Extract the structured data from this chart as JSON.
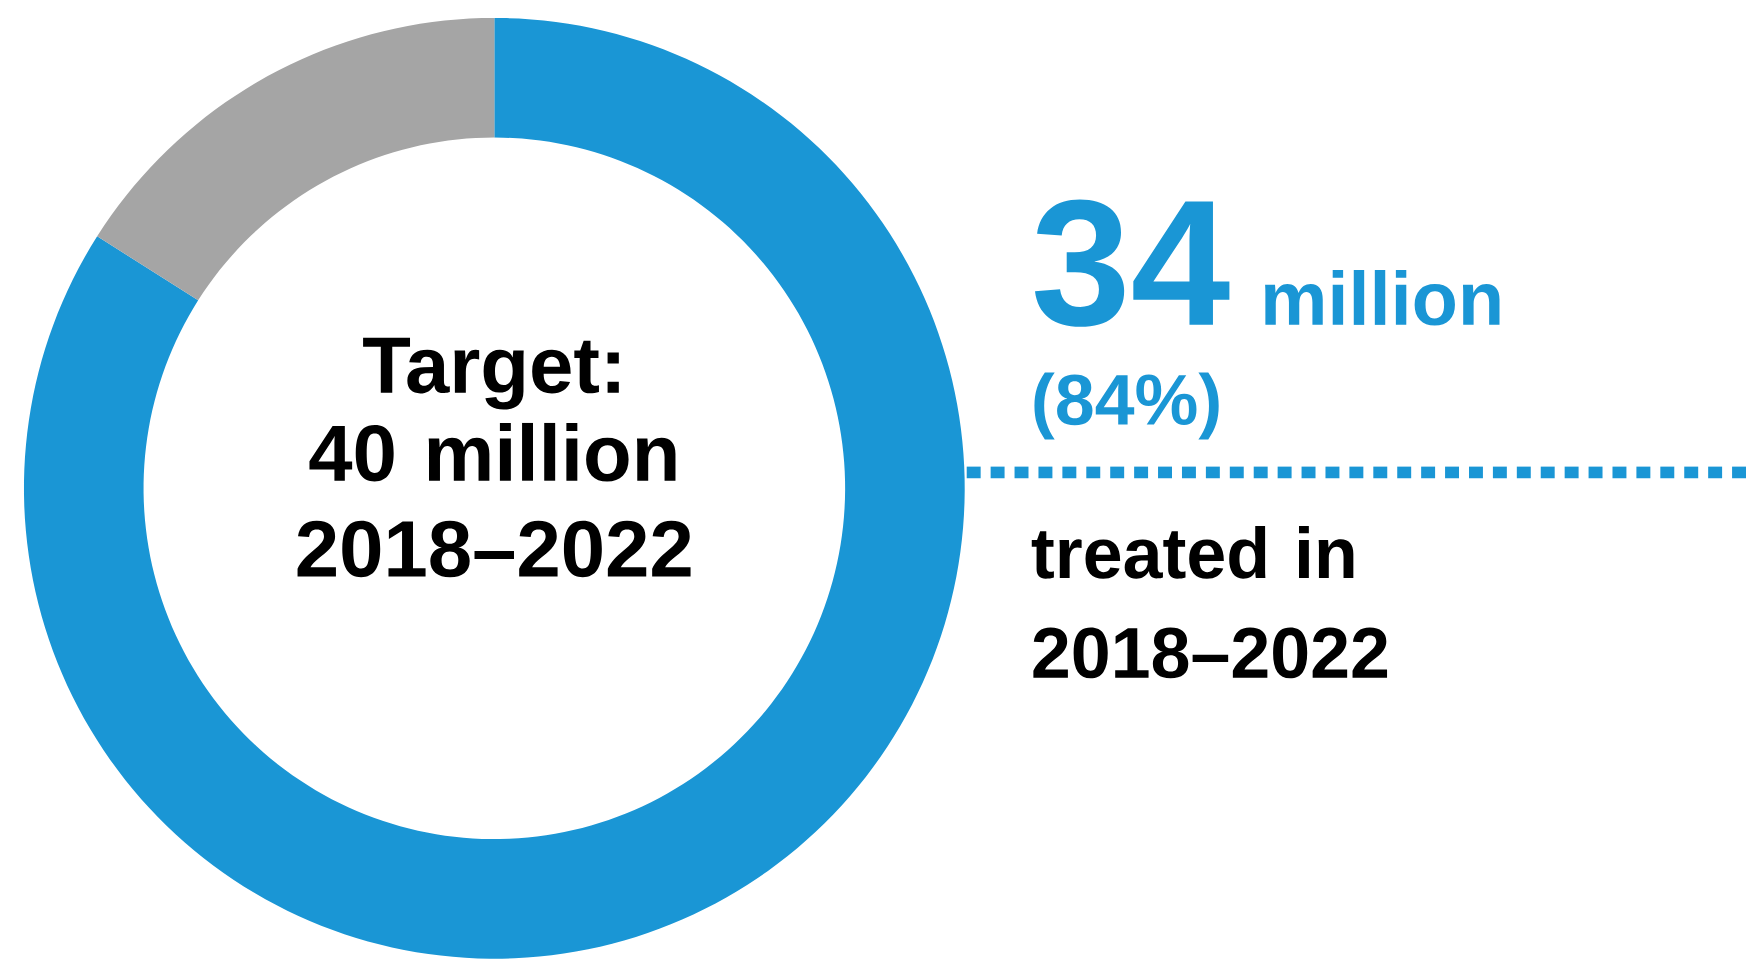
{
  "chart_data": {
    "type": "donut",
    "title": "Target:",
    "subtitle": "40 million 2018–2022",
    "categories": [
      null,
      null
    ],
    "values": [
      84,
      16
    ],
    "colors": [
      "#1a96d5",
      "#a5a5a5"
    ],
    "value_labels": [
      "(84%)",
      null
    ],
    "annotations": [
      "34",
      "million",
      "treated in 2018–2022"
    ]
  }
}
